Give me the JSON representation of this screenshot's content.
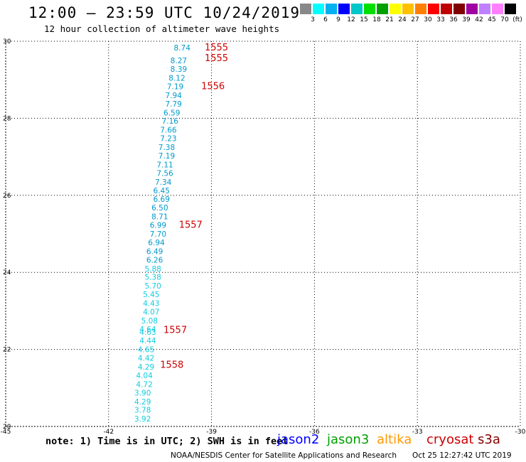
{
  "header": {
    "title": "12:00 — 23:59 UTC 10/24/2019",
    "subtitle": "12 hour collection of altimeter wave heights"
  },
  "legend": {
    "colors": [
      "#888888",
      "#00ffff",
      "#00b0f0",
      "#0000ff",
      "#00c8c8",
      "#00e000",
      "#00a000",
      "#ffff00",
      "#ffc000",
      "#ff8000",
      "#ff0000",
      "#c00000",
      "#800000",
      "#a000a0",
      "#c080ff",
      "#ff80ff",
      "#000000"
    ],
    "labels": [
      "3",
      "6",
      "9",
      "12",
      "15",
      "18",
      "21",
      "24",
      "27",
      "30",
      "33",
      "36",
      "39",
      "42",
      "45",
      "70",
      "(ft)"
    ]
  },
  "note": "note: 1) Time is in UTC; 2) SWH is in feet",
  "satellites": [
    {
      "name": "jason2",
      "color": "#0000ff"
    },
    {
      "name": "jason3",
      "color": "#00a000"
    },
    {
      "name": "altika",
      "color": "#ff9900"
    },
    {
      "name": "cryosat",
      "color": "#cc0000"
    },
    {
      "name": "s3a",
      "color": "#880000"
    }
  ],
  "footer": {
    "credit": "NOAA/NESDIS Center for Satellite Applications and Research",
    "timestamp": "Oct 25 12:27:42 UTC 2019"
  },
  "chart_data": {
    "type": "scatter",
    "xlim": [
      -45,
      -30
    ],
    "ylim": [
      20,
      30
    ],
    "x_ticks": [
      "-45",
      "-42",
      "-39",
      "-36",
      "-33",
      "-30"
    ],
    "y_ticks": [
      "20",
      "22",
      "24",
      "26",
      "28",
      "30"
    ],
    "grid": true,
    "series": [
      {
        "color": "#0099cc",
        "points": [
          {
            "x": -40.1,
            "y": 29.83,
            "label": "8.74"
          },
          {
            "x": -40.2,
            "y": 29.5,
            "label": "8.27"
          },
          {
            "x": -40.2,
            "y": 29.28,
            "label": "8.39"
          },
          {
            "x": -40.25,
            "y": 29.05,
            "label": "8.12"
          },
          {
            "x": -40.3,
            "y": 28.83,
            "label": "7.19"
          },
          {
            "x": -40.35,
            "y": 28.6,
            "label": "7.94"
          },
          {
            "x": -40.35,
            "y": 28.38,
            "label": "7.79"
          },
          {
            "x": -40.4,
            "y": 28.15,
            "label": "6.59"
          },
          {
            "x": -40.45,
            "y": 27.93,
            "label": "7.16"
          },
          {
            "x": -40.5,
            "y": 27.7,
            "label": "7.66"
          },
          {
            "x": -40.5,
            "y": 27.48,
            "label": "7.23"
          },
          {
            "x": -40.55,
            "y": 27.25,
            "label": "7.38"
          },
          {
            "x": -40.55,
            "y": 27.03,
            "label": "7.19"
          },
          {
            "x": -40.6,
            "y": 26.8,
            "label": "7.11"
          },
          {
            "x": -40.6,
            "y": 26.58,
            "label": "7.56"
          },
          {
            "x": -40.65,
            "y": 26.35,
            "label": "7.34"
          },
          {
            "x": -40.7,
            "y": 26.13,
            "label": "6.45"
          },
          {
            "x": -40.7,
            "y": 25.9,
            "label": "6.69"
          },
          {
            "x": -40.75,
            "y": 25.68,
            "label": "6.50"
          },
          {
            "x": -40.75,
            "y": 25.45,
            "label": "8.71"
          },
          {
            "x": -40.8,
            "y": 25.23,
            "label": "6.99"
          },
          {
            "x": -40.8,
            "y": 25.0,
            "label": "7.70"
          },
          {
            "x": -40.85,
            "y": 24.78,
            "label": "6.94"
          },
          {
            "x": -40.9,
            "y": 24.55,
            "label": "6.49"
          },
          {
            "x": -40.9,
            "y": 24.33,
            "label": "6.26"
          }
        ]
      },
      {
        "color": "#11cce0",
        "points": [
          {
            "x": -40.95,
            "y": 24.1,
            "label": "5.88"
          },
          {
            "x": -40.95,
            "y": 23.88,
            "label": "5.38"
          },
          {
            "x": -40.95,
            "y": 23.65,
            "label": "5.70"
          },
          {
            "x": -41.0,
            "y": 23.43,
            "label": "5.45"
          },
          {
            "x": -41.0,
            "y": 23.2,
            "label": "4.43"
          },
          {
            "x": -41.0,
            "y": 22.98,
            "label": "4.07"
          },
          {
            "x": -41.05,
            "y": 22.75,
            "label": "5.08"
          },
          {
            "x": -41.1,
            "y": 22.53,
            "label": "4.64"
          },
          {
            "x": -41.1,
            "y": 22.45,
            "label": "4.63"
          },
          {
            "x": -41.1,
            "y": 22.23,
            "label": "4.44"
          },
          {
            "x": -41.15,
            "y": 22.0,
            "label": "4.65"
          },
          {
            "x": -41.15,
            "y": 21.78,
            "label": "4.42"
          },
          {
            "x": -41.15,
            "y": 21.55,
            "label": "4.29"
          },
          {
            "x": -41.2,
            "y": 21.33,
            "label": "4.04"
          },
          {
            "x": -41.2,
            "y": 21.1,
            "label": "4.72"
          },
          {
            "x": -41.25,
            "y": 20.88,
            "label": "3.90"
          },
          {
            "x": -41.25,
            "y": 20.65,
            "label": "4.29"
          },
          {
            "x": -41.25,
            "y": 20.43,
            "label": "3.78"
          },
          {
            "x": -41.25,
            "y": 20.2,
            "label": "3.92"
          }
        ]
      },
      {
        "color": "#cc0000",
        "points": [
          {
            "x": -39.2,
            "y": 29.83,
            "label": "1555"
          },
          {
            "x": -39.2,
            "y": 29.56,
            "label": "1555"
          },
          {
            "x": -39.3,
            "y": 28.83,
            "label": "1556"
          },
          {
            "x": -39.95,
            "y": 25.23,
            "label": "1557"
          },
          {
            "x": -40.4,
            "y": 22.5,
            "label": "1557"
          },
          {
            "x": -40.5,
            "y": 21.6,
            "label": "1558"
          }
        ]
      }
    ]
  }
}
